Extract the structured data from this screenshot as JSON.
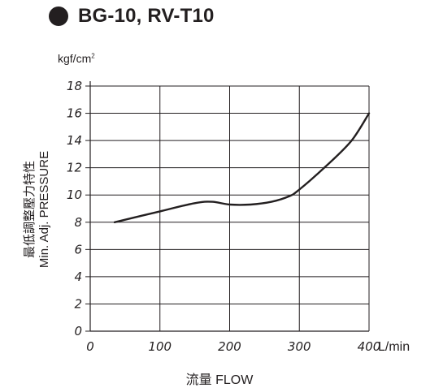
{
  "title": "BG-10, RV-T10",
  "unit_label": "kgf/cm",
  "unit_sup": "2",
  "chart_data": {
    "type": "line",
    "title": "BG-10, RV-T10",
    "ylabel_jp": "最低調整壓力特性",
    "ylabel": "Min. Adj. PRESSURE",
    "xlabel": "流量 FLOW",
    "x_unit": "L/min",
    "y_unit": "kgf/cm2",
    "xlim": [
      0,
      400
    ],
    "ylim": [
      0,
      18
    ],
    "x_ticks": [
      0,
      100,
      200,
      300,
      400
    ],
    "y_ticks": [
      0,
      2,
      4,
      6,
      8,
      10,
      12,
      14,
      16,
      18
    ],
    "grid": true,
    "series": [
      {
        "x": [
          35,
          100,
          150,
          175,
          200,
          230,
          260,
          285,
          300,
          340,
          375,
          400
        ],
        "y": [
          8.0,
          8.8,
          9.4,
          9.5,
          9.3,
          9.3,
          9.5,
          9.9,
          10.4,
          12.2,
          14.0,
          16.0
        ]
      }
    ]
  }
}
